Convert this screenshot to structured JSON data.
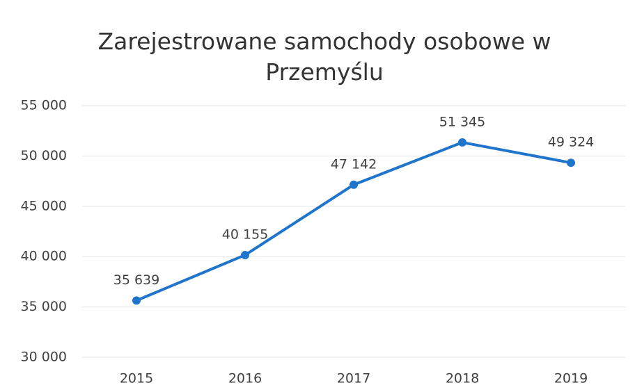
{
  "chart_data": {
    "type": "line",
    "title": "Zarejestrowane samochody osobowe w Przemyślu",
    "categories": [
      "2015",
      "2016",
      "2017",
      "2018",
      "2019"
    ],
    "series": [
      {
        "name": "Zarejestrowane samochody osobowe",
        "color": "#1f74cc",
        "values": [
          35639,
          40155,
          47142,
          51345,
          49324
        ],
        "value_labels": [
          "35 639",
          "40 155",
          "47 142",
          "51 345",
          "49 324"
        ]
      }
    ],
    "ylim": [
      30000,
      55000
    ],
    "yticks": [
      {
        "value": 30000,
        "label": "30 000"
      },
      {
        "value": 35000,
        "label": "35 000"
      },
      {
        "value": 40000,
        "label": "40 000"
      },
      {
        "value": 45000,
        "label": "45 000"
      },
      {
        "value": 50000,
        "label": "50 000"
      },
      {
        "value": 55000,
        "label": "55 000"
      }
    ],
    "grid": true
  }
}
